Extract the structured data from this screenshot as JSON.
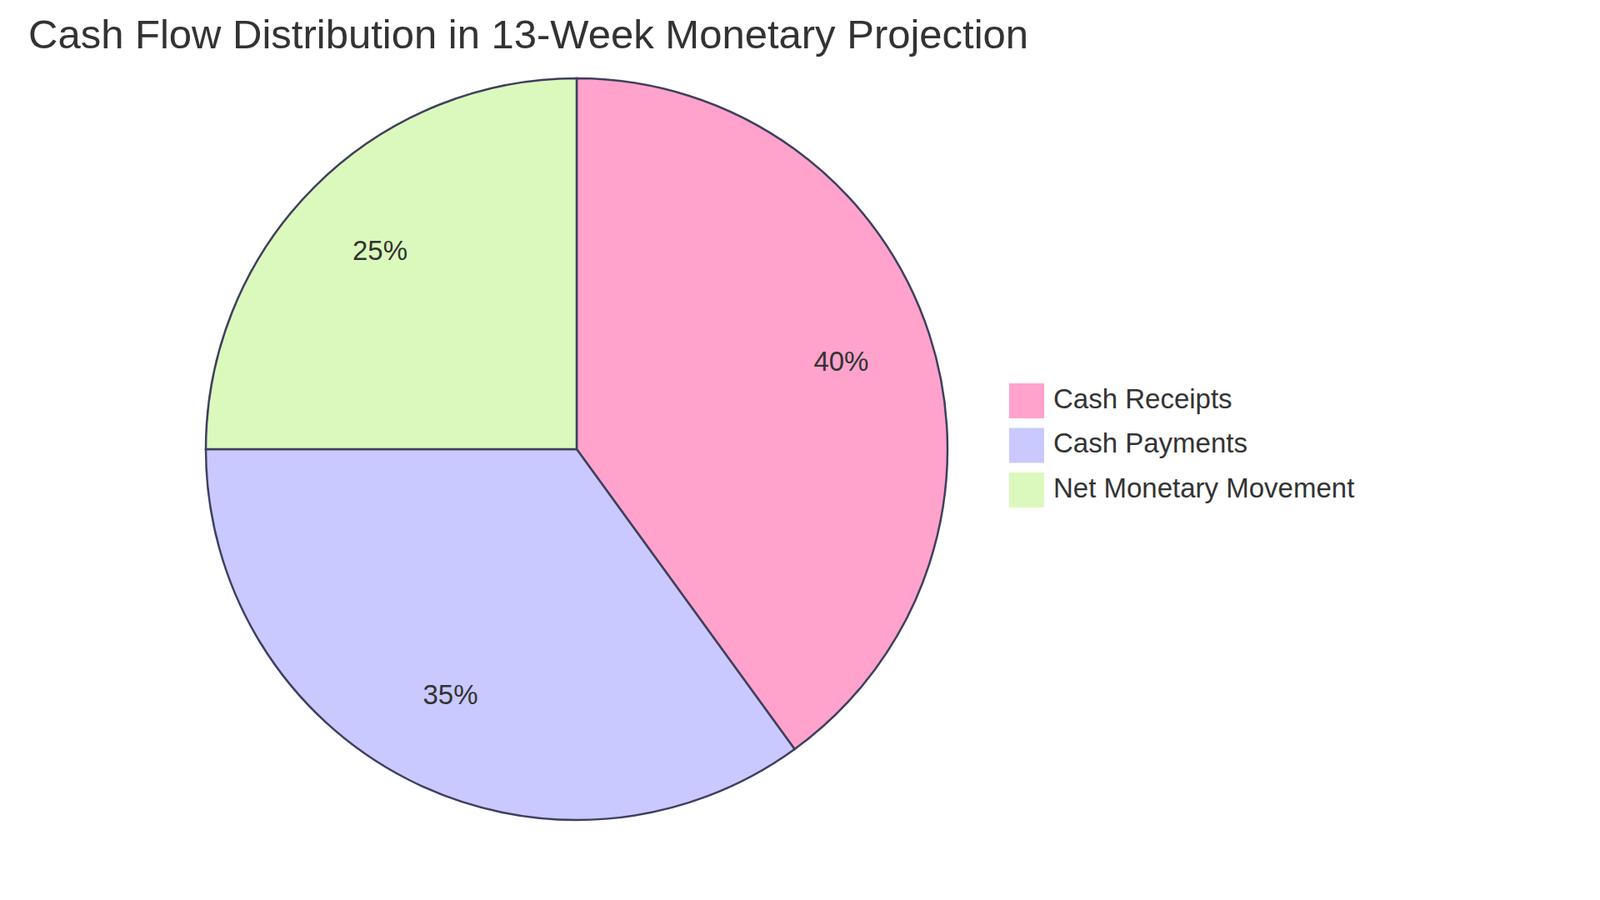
{
  "chart_data": {
    "type": "pie",
    "title": "Cash Flow Distribution in 13-Week Monetary Projection",
    "categories": [
      "Cash Receipts",
      "Cash Payments",
      "Net Monetary Movement"
    ],
    "values": [
      40,
      35,
      25
    ],
    "value_labels": [
      "40%",
      "35%",
      "25%"
    ],
    "colors": [
      "#ffa3cc",
      "#c9c9ff",
      "#dbf9bc"
    ],
    "data_labels": true,
    "legend": "right"
  }
}
